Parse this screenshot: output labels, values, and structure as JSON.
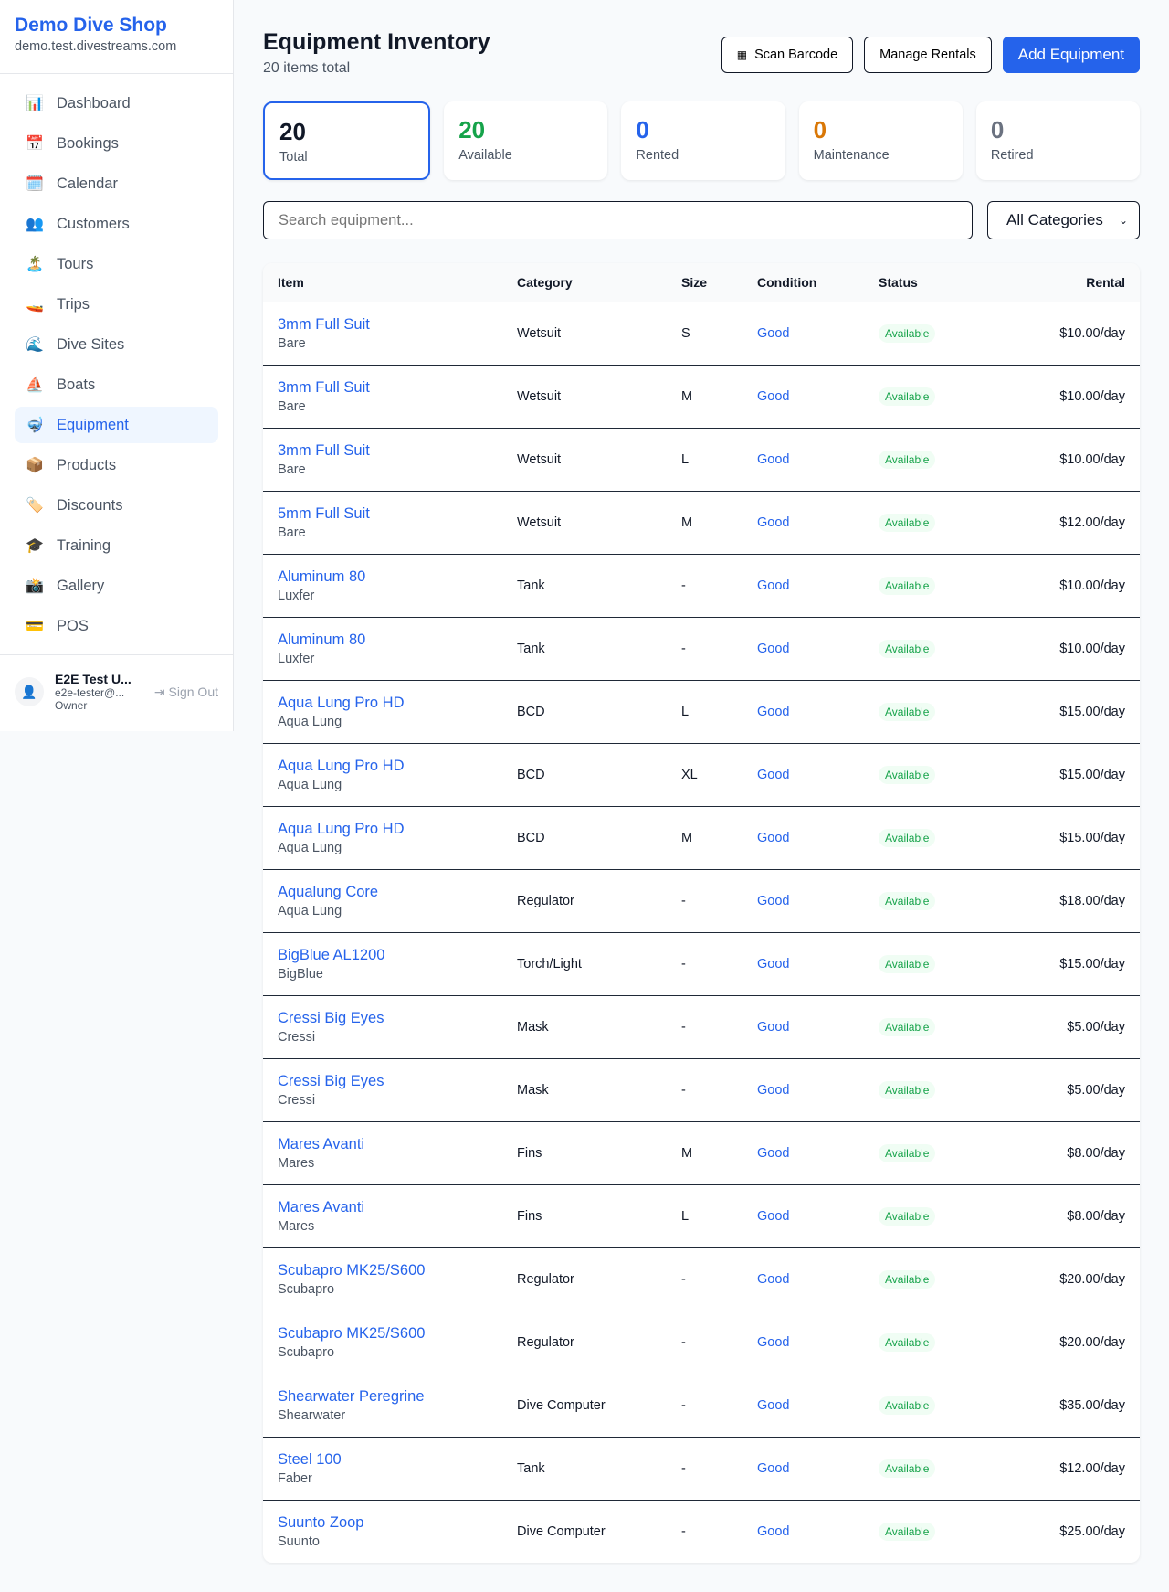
{
  "sidebar": {
    "brand": "Demo Dive Shop",
    "domain": "demo.test.divestreams.com",
    "items": [
      {
        "icon": "📊",
        "label": "Dashboard"
      },
      {
        "icon": "📅",
        "label": "Bookings"
      },
      {
        "icon": "🗓️",
        "label": "Calendar"
      },
      {
        "icon": "👥",
        "label": "Customers"
      },
      {
        "icon": "🏝️",
        "label": "Tours"
      },
      {
        "icon": "🚤",
        "label": "Trips"
      },
      {
        "icon": "🌊",
        "label": "Dive Sites"
      },
      {
        "icon": "⛵",
        "label": "Boats"
      },
      {
        "icon": "🤿",
        "label": "Equipment",
        "active": true
      },
      {
        "icon": "📦",
        "label": "Products"
      },
      {
        "icon": "🏷️",
        "label": "Discounts"
      },
      {
        "icon": "🎓",
        "label": "Training"
      },
      {
        "icon": "📸",
        "label": "Gallery"
      },
      {
        "icon": "💳",
        "label": "POS"
      }
    ],
    "user": {
      "name": "E2E Test U...",
      "email": "e2e-tester@...",
      "role": "Owner",
      "sign_out": "Sign Out"
    }
  },
  "header": {
    "title": "Equipment Inventory",
    "subtitle": "20 items total",
    "scan": "Scan Barcode",
    "manage": "Manage Rentals",
    "add": "Add Equipment"
  },
  "stats": [
    {
      "value": "20",
      "label": "Total",
      "color": "#111827"
    },
    {
      "value": "20",
      "label": "Available",
      "color": "#16a34a"
    },
    {
      "value": "0",
      "label": "Rented",
      "color": "#2563eb"
    },
    {
      "value": "0",
      "label": "Maintenance",
      "color": "#d97706"
    },
    {
      "value": "0",
      "label": "Retired",
      "color": "#6b7280"
    }
  ],
  "filters": {
    "search_placeholder": "Search equipment...",
    "category": "All Categories"
  },
  "table": {
    "headers": [
      "Item",
      "Category",
      "Size",
      "Condition",
      "Status",
      "Rental"
    ],
    "rows": [
      [
        "3mm Full Suit",
        "Bare",
        "Wetsuit",
        "S",
        "Good",
        "Available",
        "$10.00/day"
      ],
      [
        "3mm Full Suit",
        "Bare",
        "Wetsuit",
        "M",
        "Good",
        "Available",
        "$10.00/day"
      ],
      [
        "3mm Full Suit",
        "Bare",
        "Wetsuit",
        "L",
        "Good",
        "Available",
        "$10.00/day"
      ],
      [
        "5mm Full Suit",
        "Bare",
        "Wetsuit",
        "M",
        "Good",
        "Available",
        "$12.00/day"
      ],
      [
        "Aluminum 80",
        "Luxfer",
        "Tank",
        "-",
        "Good",
        "Available",
        "$10.00/day"
      ],
      [
        "Aluminum 80",
        "Luxfer",
        "Tank",
        "-",
        "Good",
        "Available",
        "$10.00/day"
      ],
      [
        "Aqua Lung Pro HD",
        "Aqua Lung",
        "BCD",
        "L",
        "Good",
        "Available",
        "$15.00/day"
      ],
      [
        "Aqua Lung Pro HD",
        "Aqua Lung",
        "BCD",
        "XL",
        "Good",
        "Available",
        "$15.00/day"
      ],
      [
        "Aqua Lung Pro HD",
        "Aqua Lung",
        "BCD",
        "M",
        "Good",
        "Available",
        "$15.00/day"
      ],
      [
        "Aqualung Core",
        "Aqua Lung",
        "Regulator",
        "-",
        "Good",
        "Available",
        "$18.00/day"
      ],
      [
        "BigBlue AL1200",
        "BigBlue",
        "Torch/Light",
        "-",
        "Good",
        "Available",
        "$15.00/day"
      ],
      [
        "Cressi Big Eyes",
        "Cressi",
        "Mask",
        "-",
        "Good",
        "Available",
        "$5.00/day"
      ],
      [
        "Cressi Big Eyes",
        "Cressi",
        "Mask",
        "-",
        "Good",
        "Available",
        "$5.00/day"
      ],
      [
        "Mares Avanti",
        "Mares",
        "Fins",
        "M",
        "Good",
        "Available",
        "$8.00/day"
      ],
      [
        "Mares Avanti",
        "Mares",
        "Fins",
        "L",
        "Good",
        "Available",
        "$8.00/day"
      ],
      [
        "Scubapro MK25/S600",
        "Scubapro",
        "Regulator",
        "-",
        "Good",
        "Available",
        "$20.00/day"
      ],
      [
        "Scubapro MK25/S600",
        "Scubapro",
        "Regulator",
        "-",
        "Good",
        "Available",
        "$20.00/day"
      ],
      [
        "Shearwater Peregrine",
        "Shearwater",
        "Dive Computer",
        "-",
        "Good",
        "Available",
        "$35.00/day"
      ],
      [
        "Steel 100",
        "Faber",
        "Tank",
        "-",
        "Good",
        "Available",
        "$12.00/day"
      ],
      [
        "Suunto Zoop",
        "Suunto",
        "Dive Computer",
        "-",
        "Good",
        "Available",
        "$25.00/day"
      ]
    ]
  }
}
